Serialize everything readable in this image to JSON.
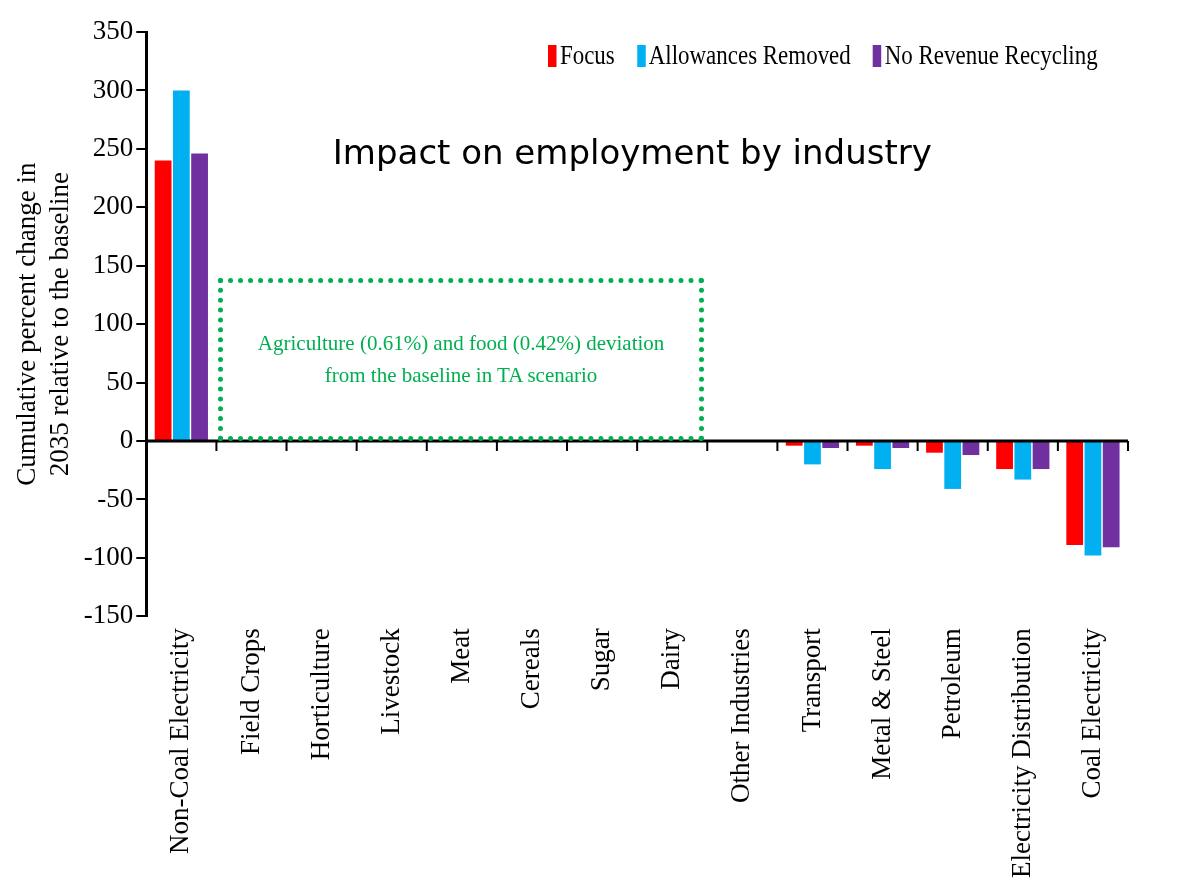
{
  "chart_data": {
    "type": "bar",
    "title": "Impact on employment by industry",
    "ylabel": "Cumulative percent change in 2035 relative to the baseline",
    "categories": [
      "Non-Coal Electricity",
      "Field Crops",
      "Horticulture",
      "Livestock",
      "Meat",
      "Cereals",
      "Sugar",
      "Dairy",
      "Other Industries",
      "Transport",
      "Metal & Steel",
      "Petroleum",
      "Electricity Distribution",
      "Coal Electricity"
    ],
    "series": [
      {
        "name": "Focus",
        "color": "#ff0000",
        "values": [
          240,
          0,
          0,
          0,
          0,
          0,
          0,
          0,
          0,
          -4,
          -4,
          -10,
          -24,
          -89
        ]
      },
      {
        "name": "Allowances Removed",
        "color": "#00b0f0",
        "values": [
          300,
          0,
          0,
          0,
          0,
          0,
          0,
          0,
          0,
          -20,
          -24,
          -41,
          -33,
          -98
        ]
      },
      {
        "name": "No Revenue Recycling",
        "color": "#7030a0",
        "values": [
          246,
          0,
          0,
          0,
          0,
          0,
          0,
          0,
          0,
          -6,
          -6,
          -12,
          -24,
          -91
        ]
      }
    ],
    "ylim": [
      -150,
      350
    ],
    "yticks": [
      -150,
      -100,
      -50,
      0,
      50,
      100,
      150,
      200,
      250,
      300,
      350
    ],
    "grid": false,
    "ref_lines": [
      {
        "axis": "y",
        "value": 0,
        "color": "#000000"
      }
    ],
    "legend": "top right",
    "annotations": [
      "Agriculture (0.61%) and food (0.42%) deviation from the baseline in TA scenario"
    ]
  }
}
